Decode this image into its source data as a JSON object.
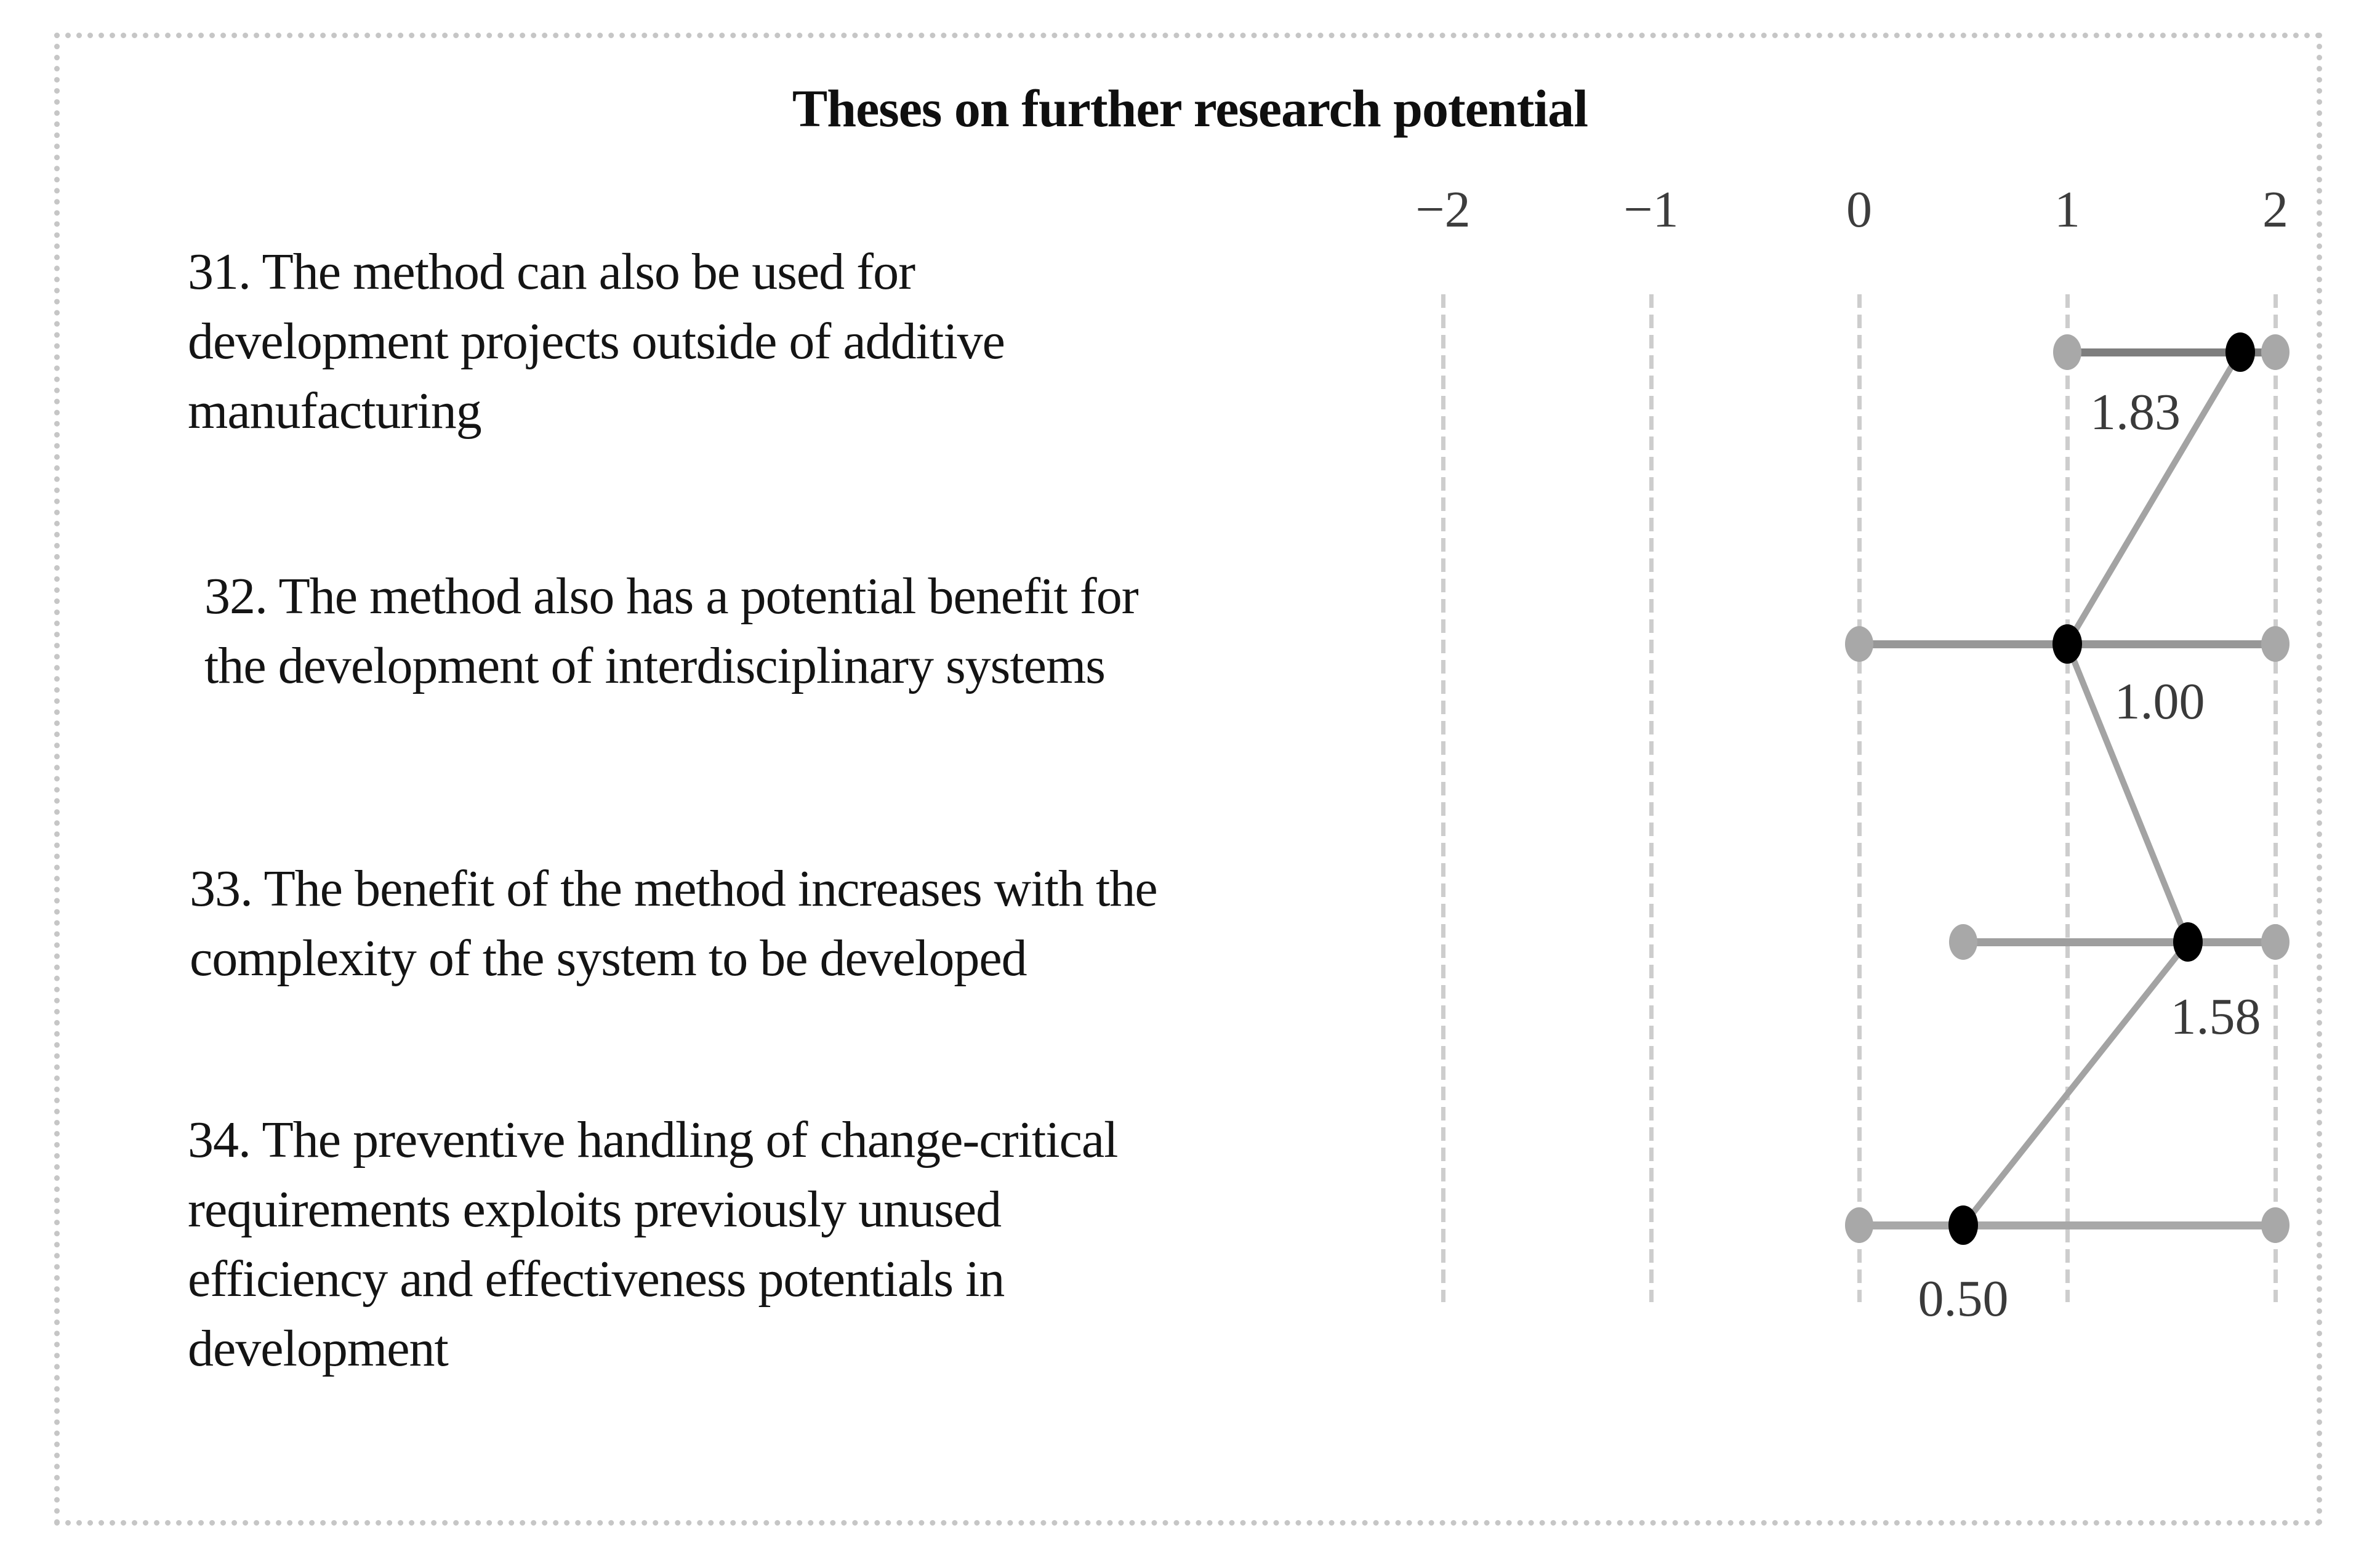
{
  "figure": {
    "title": "Theses on further research potential"
  },
  "chart_data": {
    "type": "scatter",
    "subtype": "dot-range-plot",
    "title": "Theses on further research potential",
    "xlabel": "",
    "ylabel": "",
    "xlim": [
      -2,
      2
    ],
    "grid": "vertical dashed gridlines at each tick",
    "legend": "none",
    "axis_position": "top",
    "axis_ticks": [
      {
        "label": "−2",
        "value": -2
      },
      {
        "label": "−1",
        "value": -1
      },
      {
        "label": "0",
        "value": 0
      },
      {
        "label": "1",
        "value": 1
      },
      {
        "label": "2",
        "value": 2
      }
    ],
    "rows": [
      {
        "label": "31. The method can also be used for\ndevelopment projects outside of additive\nmanufacturing",
        "min": 1,
        "max": 2,
        "mean": 1.83,
        "mean_label": "1.83",
        "line_color": "#7e7e7e"
      },
      {
        "label": "32. The method also has a potential benefit for\nthe development of interdisciplinary systems",
        "min": 0,
        "max": 2,
        "mean": 1.0,
        "mean_label": "1.00",
        "line_color": "#989898"
      },
      {
        "label": "33. The benefit of the method increases with the\ncomplexity of the system to be developed",
        "min": 0.5,
        "max": 2,
        "mean": 1.58,
        "mean_label": "1.58",
        "line_color": "#9e9e9e"
      },
      {
        "label": "34. The preventive handling of change-critical\nrequirements exploits previously unused\nefficiency and effectiveness potentials in\ndevelopment",
        "min": 0,
        "max": 2,
        "mean": 0.5,
        "mean_label": "0.50",
        "line_color": "#a8a8a8"
      }
    ],
    "colors": {
      "background": "#ffffff",
      "frame_border": "#c6c6c6",
      "gridline": "#cdcdcd",
      "tick_text": "#3d3d3d",
      "title_text": "#0f0f0f",
      "thesis_text": "#141414",
      "range_dot": "#a8a8a8",
      "mean_dot": "#000000",
      "mean_connector": "#a3a3a3",
      "mean_label_text": "#3a3a3a"
    }
  }
}
